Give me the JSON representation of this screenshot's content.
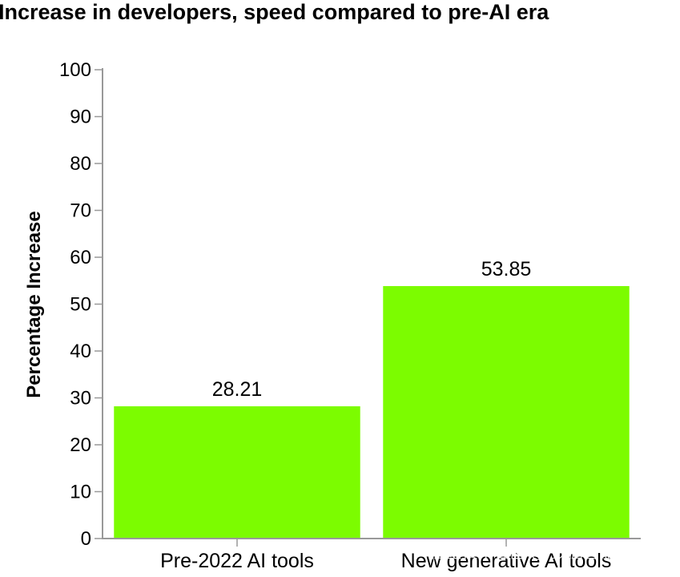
{
  "chart_data": {
    "type": "bar",
    "title": "Increase in developers, speed compared to pre-AI era",
    "xlabel": "",
    "ylabel": "Percentage Increase",
    "categories": [
      "Pre-2022 AI tools",
      "New generative AI tools"
    ],
    "values": [
      28.21,
      53.85
    ],
    "data_labels": [
      "28.21",
      "53.85"
    ],
    "ylim": [
      0,
      100
    ],
    "yticks": [
      0,
      10,
      20,
      30,
      40,
      50,
      60,
      70,
      80,
      90,
      100
    ],
    "grid": false,
    "legend": "none",
    "bar_color": "#7cfc00"
  },
  "watermark": "掘金技术社区 @ 数据智能老司机"
}
